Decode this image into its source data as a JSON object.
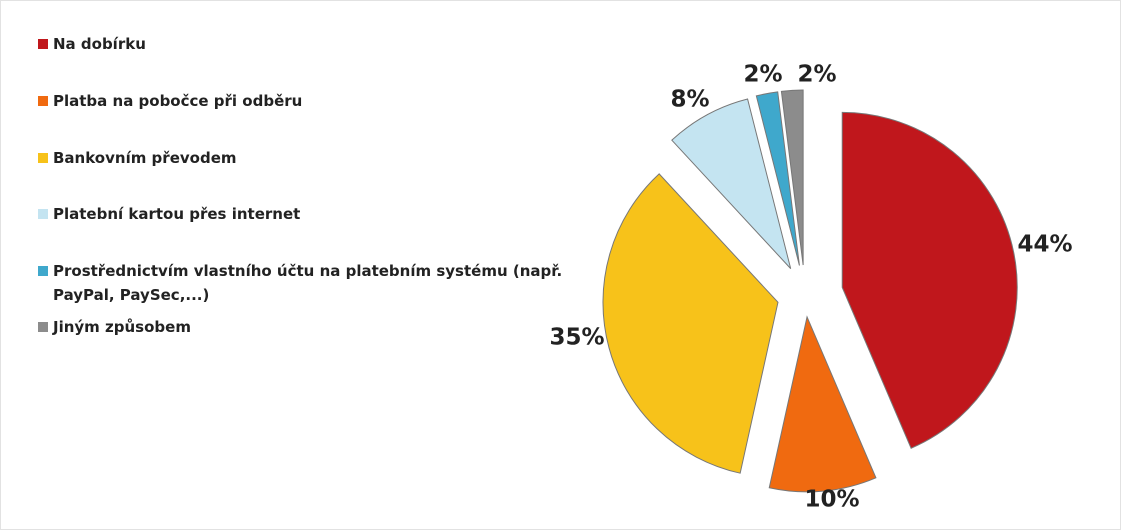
{
  "chart_data": {
    "type": "pie",
    "categories": [
      "Na dobírku",
      "Platba na pobočce při odběru",
      "Bankovním převodem",
      "Platební kartou přes internet",
      "Prostřednictvím vlastního účtu na platebním systému (např. PayPal, PaySec,...)",
      "Jiným způsobem"
    ],
    "values": [
      44,
      10,
      35,
      8,
      2,
      2
    ],
    "value_labels": [
      "44%",
      "10%",
      "35%",
      "8%",
      "2%",
      "2%"
    ],
    "colors": [
      "#c0171c",
      "#f06a10",
      "#f7c21a",
      "#c4e4f1",
      "#3fa8cc",
      "#8c8c8c"
    ]
  }
}
